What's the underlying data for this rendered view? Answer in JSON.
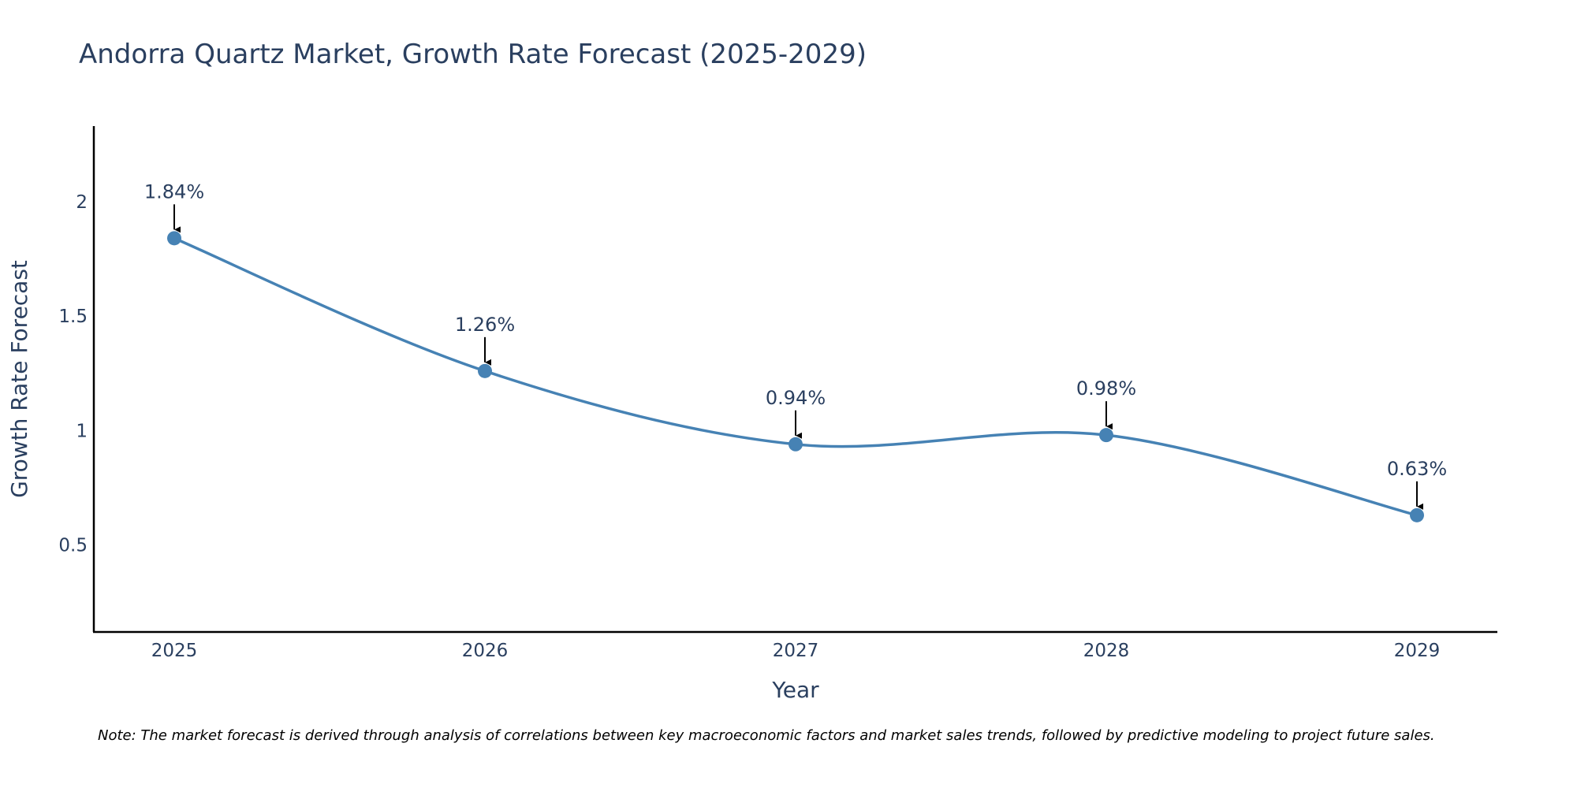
{
  "chart_data": {
    "type": "line",
    "title": "Andorra Quartz Market, Growth Rate Forecast (2025-2029)",
    "xlabel": "Year",
    "ylabel": "Growth Rate Forecast",
    "categories": [
      "2025",
      "2026",
      "2027",
      "2028",
      "2029"
    ],
    "series": [
      {
        "name": "Growth Rate Forecast",
        "values": [
          1.84,
          1.26,
          0.94,
          0.98,
          0.63
        ],
        "data_labels": [
          "1.84%",
          "1.26%",
          "0.94%",
          "0.98%",
          "0.63%"
        ]
      }
    ],
    "y_ticks": [
      0.5,
      1,
      1.5,
      2
    ],
    "y_tick_labels": [
      "0.5",
      "1",
      "1.5",
      "2"
    ],
    "ylim": [
      0.12,
      2.33
    ],
    "grid": false,
    "legend": "none",
    "line_shape": "spline",
    "line_color": "#4682b4",
    "marker_color": "#4682b4",
    "annotation_arrow_color": "#000000",
    "note": "Note: The market forecast is derived through analysis of correlations between key macroeconomic factors and market sales trends, followed by predictive modeling to project future sales."
  }
}
